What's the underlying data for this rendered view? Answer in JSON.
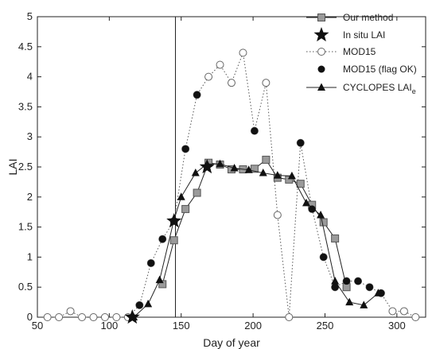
{
  "chart_data": {
    "type": "line",
    "xlabel": "Day of year",
    "ylabel": "LAI",
    "xlim": [
      50,
      320
    ],
    "ylim": [
      0,
      5
    ],
    "xticks": [
      50,
      100,
      150,
      200,
      250,
      300
    ],
    "yticks": [
      0,
      0.5,
      1,
      1.5,
      2,
      2.5,
      3,
      3.5,
      4,
      4.5,
      5
    ],
    "vertical_line_x": 146,
    "grid": false,
    "legend_position": "top-right",
    "series": [
      {
        "name": "Our method",
        "style": "solid",
        "marker": "square",
        "color": "#888888",
        "x": [
          137,
          145,
          153,
          161,
          169,
          177,
          185,
          193,
          201,
          209,
          217,
          225,
          233,
          241,
          249,
          257,
          265
        ],
        "y": [
          0.55,
          1.28,
          1.8,
          2.07,
          2.57,
          2.54,
          2.46,
          2.46,
          2.47,
          2.62,
          2.32,
          2.29,
          2.22,
          1.87,
          1.58,
          1.31,
          0.5
        ]
      },
      {
        "name": "In situ LAI",
        "style": "none",
        "marker": "star",
        "color": "#111111",
        "x": [
          116,
          145,
          168
        ],
        "y": [
          0.0,
          1.6,
          2.5
        ]
      },
      {
        "name": "MOD15",
        "style": "dotted",
        "marker": "open-circle",
        "color": "#888888",
        "x": [
          57,
          65,
          73,
          81,
          89,
          97,
          105,
          113,
          121,
          129,
          137,
          145,
          153,
          161,
          169,
          177,
          185,
          193,
          201,
          209,
          217,
          225,
          233,
          241,
          249,
          257,
          265,
          273,
          281,
          289,
          297,
          305,
          313
        ],
        "y": [
          0,
          0,
          0.1,
          0,
          0,
          0,
          0,
          0,
          0.2,
          0.9,
          1.3,
          1.6,
          2.8,
          3.7,
          4.0,
          4.2,
          3.9,
          4.4,
          3.1,
          3.9,
          1.7,
          0,
          2.9,
          1.8,
          1.0,
          0.5,
          0.6,
          0.6,
          0.5,
          0.4,
          0.1,
          0.1,
          0
        ]
      },
      {
        "name": "MOD15 (flag OK)",
        "style": "none",
        "marker": "filled-circle",
        "color": "#111111",
        "x": [
          121,
          129,
          137,
          145,
          153,
          161,
          201,
          233,
          241,
          249,
          257,
          265,
          273,
          281,
          289
        ],
        "y": [
          0.2,
          0.9,
          1.3,
          1.6,
          2.8,
          3.7,
          3.1,
          2.9,
          1.8,
          1.0,
          0.5,
          0.6,
          0.6,
          0.5,
          0.4
        ]
      },
      {
        "name": "CYCLOPES LAI",
        "name_subscript": "e",
        "style": "solid",
        "marker": "triangle",
        "color": "#111111",
        "x": [
          117,
          127,
          135,
          145,
          150,
          160,
          168,
          177,
          187,
          197,
          207,
          217,
          227,
          237,
          247,
          257,
          267,
          277,
          287
        ],
        "y": [
          0,
          0.22,
          0.62,
          1.62,
          2.0,
          2.4,
          2.55,
          2.55,
          2.48,
          2.45,
          2.4,
          2.36,
          2.35,
          1.9,
          1.7,
          0.6,
          0.25,
          0.2,
          0.4
        ]
      }
    ]
  }
}
